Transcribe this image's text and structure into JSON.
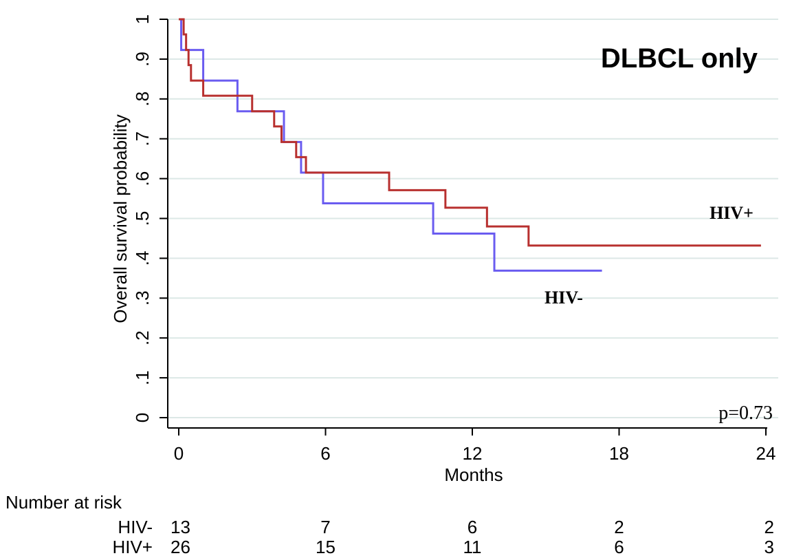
{
  "chart_data": {
    "type": "line",
    "title": "DLBCL only",
    "xlabel": "Months",
    "ylabel": "Overall survival probability",
    "xlim": [
      0,
      24
    ],
    "ylim": [
      0,
      1
    ],
    "x_ticks": [
      0,
      6,
      12,
      18,
      24
    ],
    "x_tick_labels": [
      "0",
      "6",
      "12",
      "18",
      "24"
    ],
    "y_ticks": [
      0,
      0.1,
      0.2,
      0.3,
      0.4,
      0.5,
      0.6,
      0.7,
      0.8,
      0.9,
      1
    ],
    "y_tick_labels": [
      "0",
      ".1",
      ".2",
      ".3",
      ".4",
      ".5",
      ".6",
      ".7",
      ".8",
      ".9",
      "1"
    ],
    "grid": true,
    "series": [
      {
        "name": "HIV-",
        "color": "#6a5cf0",
        "step": true,
        "x": [
          0,
          0.1,
          1.0,
          2.4,
          4.3,
          5.0,
          5.9,
          10.4,
          12.9,
          17.3
        ],
        "y": [
          1.0,
          0.923,
          0.846,
          0.769,
          0.692,
          0.615,
          0.538,
          0.462,
          0.369,
          0.369
        ]
      },
      {
        "name": "HIV+",
        "color": "#b8302f",
        "step": true,
        "x": [
          0,
          0.2,
          0.3,
          0.4,
          0.5,
          1.0,
          3.0,
          3.9,
          4.2,
          4.8,
          5.2,
          8.6,
          10.9,
          12.6,
          14.3,
          23.8
        ],
        "y": [
          1.0,
          0.962,
          0.923,
          0.885,
          0.846,
          0.808,
          0.769,
          0.731,
          0.692,
          0.654,
          0.615,
          0.571,
          0.527,
          0.48,
          0.432,
          0.432
        ]
      }
    ],
    "annotations": [
      "HIV+",
      "HIV-",
      "p=0.73"
    ],
    "risk_table": {
      "header": "Number at risk",
      "rows": [
        {
          "label": "HIV-",
          "values": [
            "13",
            "7",
            "6",
            "2",
            "2"
          ]
        },
        {
          "label": "HIV+",
          "values": [
            "26",
            "15",
            "11",
            "6",
            "3"
          ]
        }
      ]
    }
  }
}
